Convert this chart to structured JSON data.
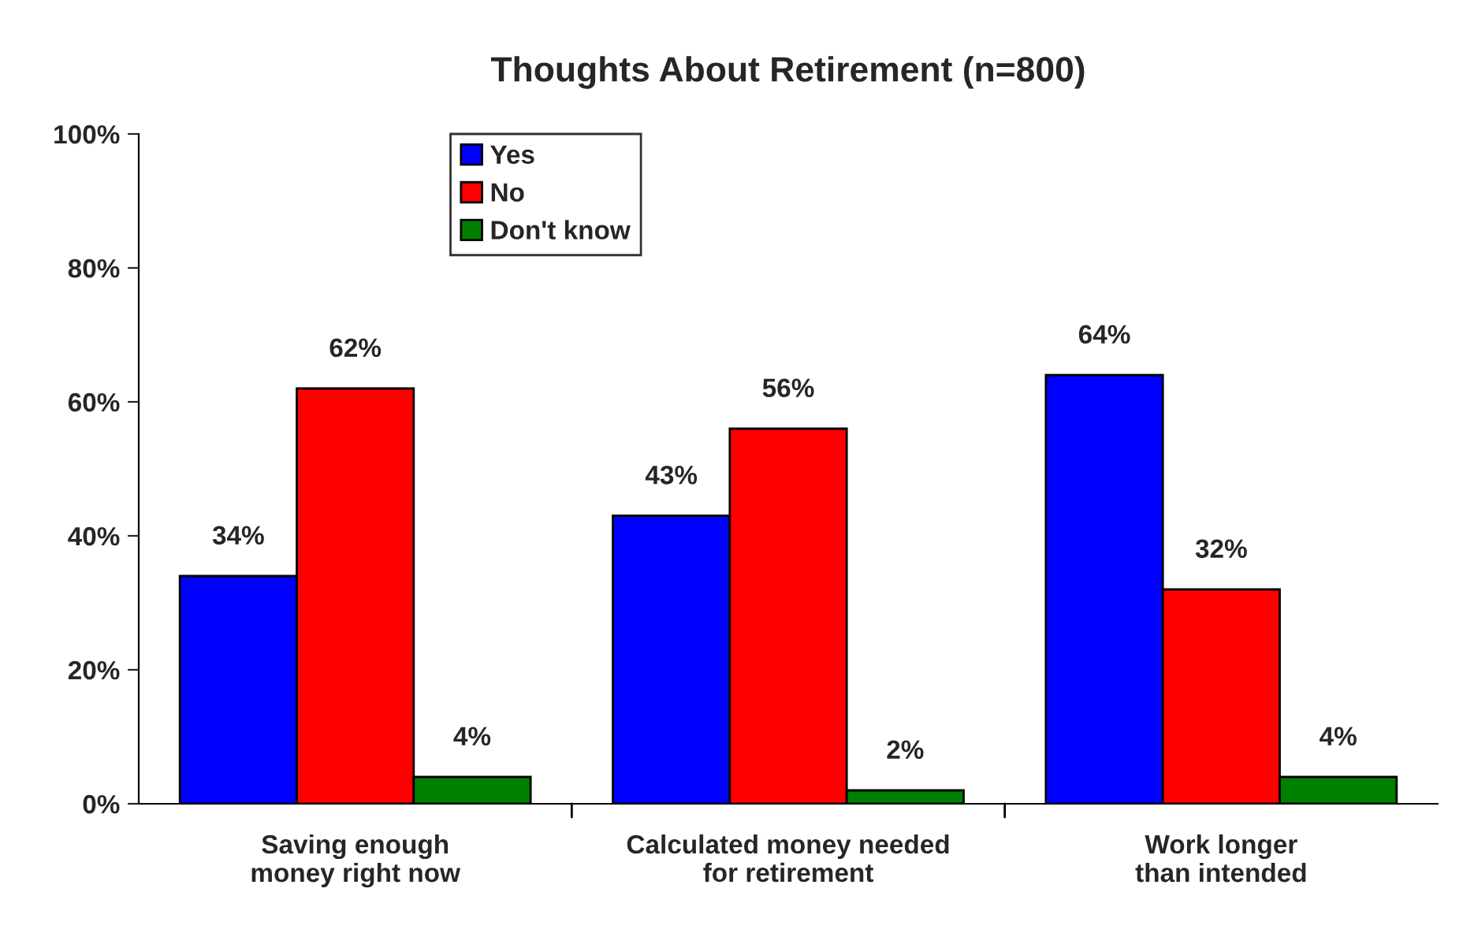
{
  "chart_data": {
    "type": "bar",
    "title": "Thoughts About Retirement (n=800)",
    "categories": [
      "Saving enough money right now",
      "Calculated money needed for retirement",
      "Work longer than intended"
    ],
    "series": [
      {
        "name": "Yes",
        "color": "#0000ff",
        "values": [
          34,
          43,
          64
        ],
        "value_labels": [
          "34%",
          "43%",
          "64%"
        ]
      },
      {
        "name": "No",
        "color": "#ff0000",
        "values": [
          62,
          56,
          32
        ],
        "value_labels": [
          "62%",
          "56%",
          "32%"
        ]
      },
      {
        "name": "Don't know",
        "color": "#008000",
        "values": [
          4,
          2,
          4
        ],
        "value_labels": [
          "4%",
          "2%",
          "4%"
        ]
      }
    ],
    "ylim": [
      0,
      100
    ],
    "yticks": [
      {
        "value": 0,
        "label": "0%"
      },
      {
        "value": 20,
        "label": "20%"
      },
      {
        "value": 40,
        "label": "40%"
      },
      {
        "value": 60,
        "label": "60%"
      },
      {
        "value": 80,
        "label": "80%"
      },
      {
        "value": 100,
        "label": "100%"
      }
    ],
    "grid": false,
    "legend": "top left"
  }
}
